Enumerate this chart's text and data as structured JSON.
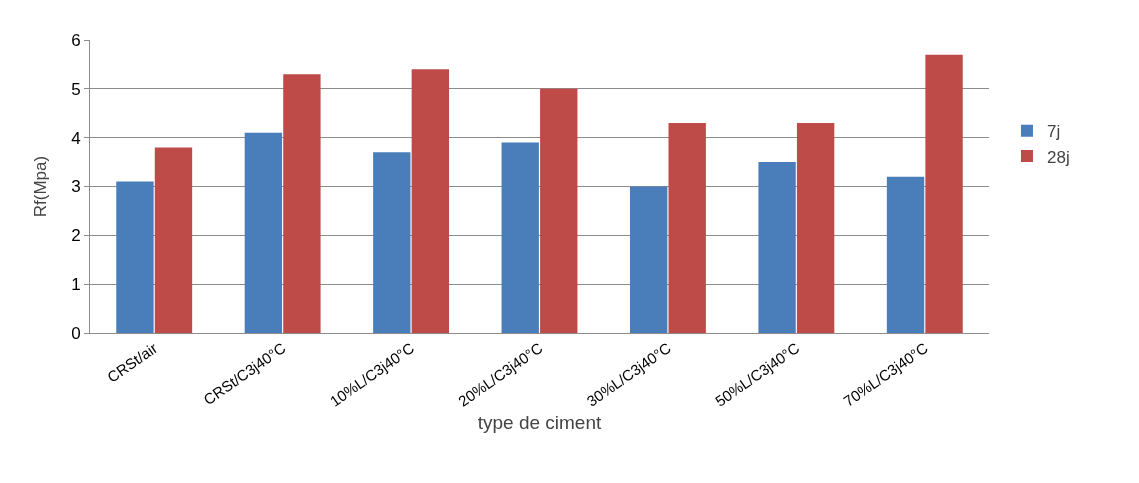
{
  "chart_data": {
    "type": "bar",
    "xlabel": "type de ciment",
    "ylabel": "Rf(Mpa)",
    "categories": [
      "CRSt/air",
      "CRSt/C3j40°C",
      "10%L/C3j40°C",
      "20%L/C3j40°C",
      "30%L/C3j40°C",
      "50%L/C3j40°C",
      "70%L/C3j40°C"
    ],
    "series": [
      {
        "name": "7j",
        "color": "#4a7ebb",
        "values": [
          3.1,
          4.1,
          3.7,
          3.9,
          3.0,
          3.5,
          3.2
        ]
      },
      {
        "name": "28j",
        "color": "#be4b48",
        "values": [
          3.8,
          5.3,
          5.4,
          5.0,
          4.3,
          4.3,
          5.7
        ]
      }
    ],
    "ylim": [
      0,
      6
    ],
    "yticks": [
      0,
      1,
      2,
      3,
      4,
      5,
      6
    ],
    "grid": "y",
    "legend": "right"
  }
}
